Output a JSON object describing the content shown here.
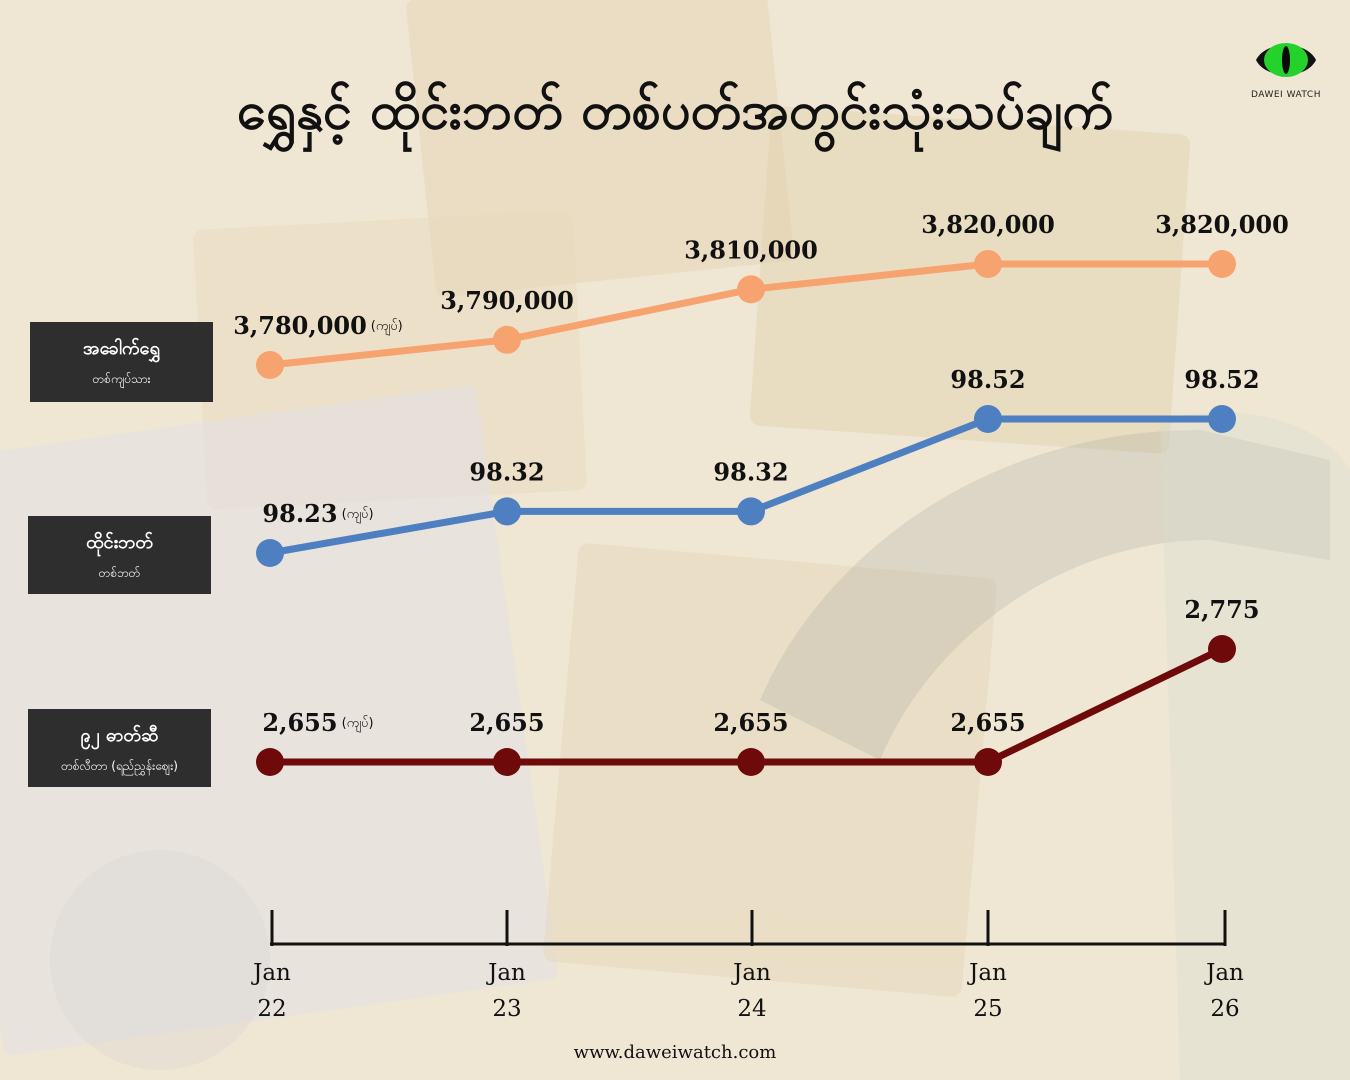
{
  "title": "ရွှေနှင့် ထိုင်းဘတ် တစ်ပတ်အတွင်းသုံးသပ်ချက်",
  "logo": {
    "text": "DAWEI WATCH",
    "icon": "cat-eye-icon"
  },
  "footer": "www.daweiwatch.com",
  "colors": {
    "gold": "#f7a36f",
    "baht": "#4e7fc0",
    "fuel": "#6e0a0a",
    "label_bg": "#2e2e2e"
  },
  "chart_data": {
    "type": "line",
    "x": [
      "Jan 22",
      "Jan 23",
      "Jan 24",
      "Jan 25",
      "Jan 26"
    ],
    "x_tick_labels": [
      {
        "month": "Jan",
        "day": "22"
      },
      {
        "month": "Jan",
        "day": "23"
      },
      {
        "month": "Jan",
        "day": "24"
      },
      {
        "month": "Jan",
        "day": "25"
      },
      {
        "month": "Jan",
        "day": "26"
      }
    ],
    "series": [
      {
        "name": "အခေါက်ရွှေ",
        "subtitle": "တစ်ကျပ်သား",
        "values": [
          3780000,
          3790000,
          3810000,
          3820000,
          3820000
        ],
        "labels": [
          "3,780,000",
          "3,790,000",
          "3,810,000",
          "3,820,000",
          "3,820,000"
        ],
        "unit": "(ကျပ်)"
      },
      {
        "name": "ထိုင်းဘတ်",
        "subtitle": "တစ်ဘတ်",
        "values": [
          98.23,
          98.32,
          98.32,
          98.52,
          98.52
        ],
        "labels": [
          "98.23",
          "98.32",
          "98.32",
          "98.52",
          "98.52"
        ],
        "unit": "(ကျပ်)"
      },
      {
        "name": "၉၂ ဓာတ်ဆီ",
        "subtitle": "တစ်လီတာ (ရည်ညွှန်းဈေး)",
        "values": [
          2655,
          2655,
          2655,
          2655,
          2775
        ],
        "labels": [
          "2,655",
          "2,655",
          "2,655",
          "2,655",
          "2,775"
        ],
        "unit": "(ကျပ်)"
      }
    ]
  }
}
